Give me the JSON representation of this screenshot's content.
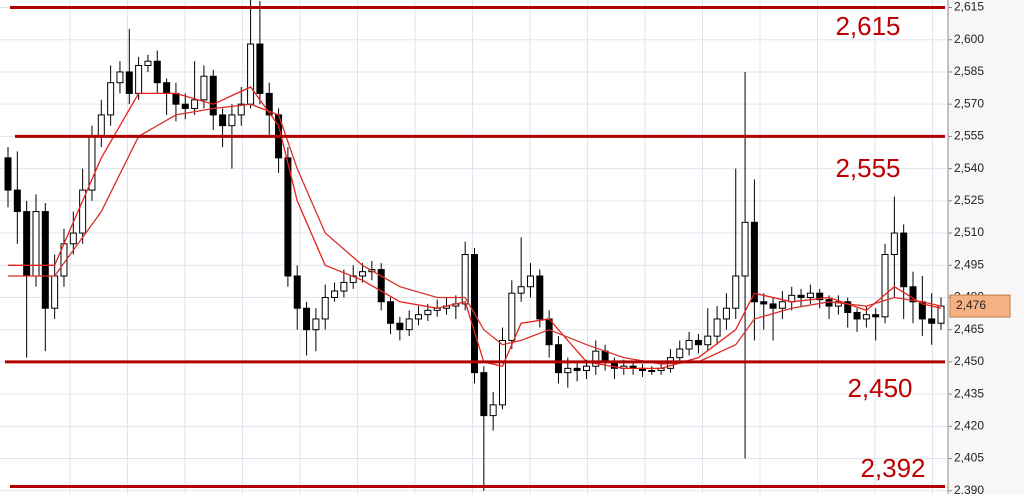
{
  "chart_data": {
    "type": "candlestick",
    "ylim": [
      2388.5,
      2618.5
    ],
    "yticks": [
      {
        "value": 2390,
        "label": "2,390"
      },
      {
        "value": 2405,
        "label": "2,405"
      },
      {
        "value": 2420,
        "label": "2,420"
      },
      {
        "value": 2435,
        "label": "2,435"
      },
      {
        "value": 2450,
        "label": "2,450"
      },
      {
        "value": 2465,
        "label": "2,465"
      },
      {
        "value": 2480,
        "label": "2,480"
      },
      {
        "value": 2495,
        "label": "2,495"
      },
      {
        "value": 2510,
        "label": "2,510"
      },
      {
        "value": 2525,
        "label": "2,525"
      },
      {
        "value": 2540,
        "label": "2,540"
      },
      {
        "value": 2555,
        "label": "2,555"
      },
      {
        "value": 2570,
        "label": "2,570"
      },
      {
        "value": 2585,
        "label": "2,585"
      },
      {
        "value": 2600,
        "label": "2,600"
      },
      {
        "value": 2615,
        "label": "2,615"
      }
    ],
    "grid": true,
    "up_color": "#ffffff",
    "down_color": "#000000",
    "open": [
      2545,
      2530,
      2520,
      2490,
      2520,
      2475,
      2490,
      2505,
      2510,
      2530,
      2555,
      2565,
      2580,
      2585,
      2575,
      2588,
      2590,
      2580,
      2575,
      2570,
      2568,
      2572,
      2583,
      2565,
      2560,
      2565,
      2570,
      2598,
      2575,
      2565,
      2545,
      2490,
      2475,
      2465,
      2470,
      2480,
      2483,
      2487,
      2490,
      2492,
      2493,
      2478,
      2468,
      2465,
      2470,
      2472,
      2474,
      2475,
      2476,
      2477,
      2500,
      2445,
      2425,
      2430,
      2460,
      2482,
      2485,
      2490,
      2470,
      2458,
      2445,
      2447,
      2446,
      2448,
      2455,
      2450,
      2447,
      2448,
      2447,
      2446,
      2446,
      2447,
      2452,
      2456,
      2460,
      2458,
      2462,
      2470,
      2475,
      2490,
      2515,
      2478,
      2477,
      2475,
      2478,
      2481,
      2480,
      2482,
      2479,
      2476,
      2478,
      2473,
      2470,
      2472,
      2471,
      2500,
      2510,
      2485,
      2478,
      2470,
      2468
    ],
    "high": [
      2550,
      2548,
      2525,
      2528,
      2524,
      2500,
      2512,
      2520,
      2540,
      2560,
      2572,
      2588,
      2590,
      2605,
      2592,
      2593,
      2595,
      2582,
      2580,
      2575,
      2590,
      2588,
      2586,
      2568,
      2570,
      2578,
      2620,
      2618,
      2580,
      2568,
      2550,
      2495,
      2478,
      2475,
      2486,
      2487,
      2493,
      2495,
      2496,
      2497,
      2496,
      2480,
      2471,
      2474,
      2476,
      2477,
      2479,
      2480,
      2481,
      2506,
      2503,
      2448,
      2436,
      2466,
      2488,
      2508,
      2496,
      2493,
      2474,
      2462,
      2452,
      2450,
      2451,
      2460,
      2458,
      2452,
      2451,
      2450,
      2449,
      2448,
      2450,
      2456,
      2460,
      2464,
      2463,
      2475,
      2476,
      2482,
      2540,
      2585,
      2535,
      2482,
      2480,
      2483,
      2485,
      2484,
      2486,
      2484,
      2481,
      2481,
      2480,
      2475,
      2476,
      2475,
      2505,
      2527,
      2514,
      2492,
      2490,
      2482,
      2480
    ],
    "low": [
      2522,
      2505,
      2452,
      2485,
      2455,
      2470,
      2485,
      2500,
      2505,
      2525,
      2550,
      2560,
      2575,
      2570,
      2572,
      2585,
      2575,
      2565,
      2562,
      2563,
      2565,
      2568,
      2558,
      2550,
      2540,
      2560,
      2568,
      2570,
      2555,
      2538,
      2485,
      2465,
      2453,
      2455,
      2465,
      2478,
      2480,
      2484,
      2487,
      2488,
      2474,
      2463,
      2460,
      2462,
      2467,
      2469,
      2471,
      2472,
      2470,
      2474,
      2440,
      2390,
      2418,
      2428,
      2456,
      2478,
      2480,
      2466,
      2452,
      2440,
      2438,
      2441,
      2442,
      2444,
      2446,
      2442,
      2444,
      2444,
      2443,
      2444,
      2444,
      2445,
      2449,
      2453,
      2454,
      2455,
      2458,
      2465,
      2470,
      2405,
      2460,
      2465,
      2460,
      2470,
      2474,
      2476,
      2477,
      2475,
      2470,
      2472,
      2466,
      2464,
      2466,
      2460,
      2468,
      2480,
      2470,
      2468,
      2462,
      2458,
      2465
    ],
    "close": [
      2530,
      2520,
      2490,
      2520,
      2475,
      2490,
      2505,
      2510,
      2530,
      2555,
      2565,
      2580,
      2585,
      2575,
      2588,
      2590,
      2580,
      2575,
      2570,
      2568,
      2572,
      2583,
      2565,
      2560,
      2565,
      2570,
      2598,
      2575,
      2565,
      2545,
      2490,
      2475,
      2465,
      2470,
      2480,
      2483,
      2487,
      2490,
      2492,
      2493,
      2478,
      2468,
      2465,
      2470,
      2472,
      2474,
      2475,
      2476,
      2477,
      2500,
      2445,
      2425,
      2430,
      2460,
      2482,
      2485,
      2490,
      2470,
      2458,
      2445,
      2447,
      2446,
      2448,
      2455,
      2450,
      2447,
      2448,
      2447,
      2446,
      2446,
      2447,
      2452,
      2456,
      2460,
      2458,
      2462,
      2470,
      2475,
      2490,
      2515,
      2478,
      2477,
      2475,
      2478,
      2481,
      2480,
      2482,
      2479,
      2476,
      2478,
      2473,
      2470,
      2472,
      2471,
      2500,
      2510,
      2485,
      2478,
      2470,
      2468,
      2476
    ],
    "overlays": [
      {
        "color": "#e8201a",
        "x": [
          0,
          5,
          10,
          14,
          18,
          22,
          26,
          29,
          31,
          34,
          38,
          42,
          46,
          49,
          51,
          53,
          55,
          58,
          62,
          66,
          70,
          74,
          78,
          80,
          84,
          88,
          92,
          95,
          98,
          100
        ],
        "values": [
          2495,
          2495,
          2545,
          2575,
          2575,
          2570,
          2578,
          2560,
          2525,
          2495,
          2488,
          2478,
          2475,
          2478,
          2450,
          2448,
          2468,
          2470,
          2450,
          2447,
          2447,
          2452,
          2465,
          2482,
          2478,
          2480,
          2474,
          2485,
          2477,
          2475
        ]
      },
      {
        "color": "#d9302a",
        "x": [
          0,
          5,
          10,
          14,
          18,
          22,
          26,
          29,
          31,
          34,
          38,
          42,
          46,
          49,
          51,
          53,
          55,
          58,
          62,
          66,
          70,
          74,
          78,
          80,
          84,
          88,
          92,
          95,
          98,
          100
        ],
        "values": [
          2490,
          2490,
          2520,
          2555,
          2565,
          2568,
          2570,
          2565,
          2540,
          2510,
          2495,
          2485,
          2480,
          2480,
          2465,
          2458,
          2460,
          2465,
          2458,
          2452,
          2449,
          2450,
          2458,
          2470,
          2475,
          2478,
          2476,
          2480,
          2478,
          2476
        ]
      }
    ],
    "levels": [
      {
        "value": 2615,
        "label": "2,615"
      },
      {
        "value": 2555,
        "label": "2,555"
      },
      {
        "value": 2450,
        "label": "2,450"
      },
      {
        "value": 2392,
        "label": "2,392"
      }
    ],
    "level_color": "#b00000",
    "last_price": {
      "value": 2476,
      "label": "2,476"
    },
    "last_price_color": "#f6b183"
  }
}
